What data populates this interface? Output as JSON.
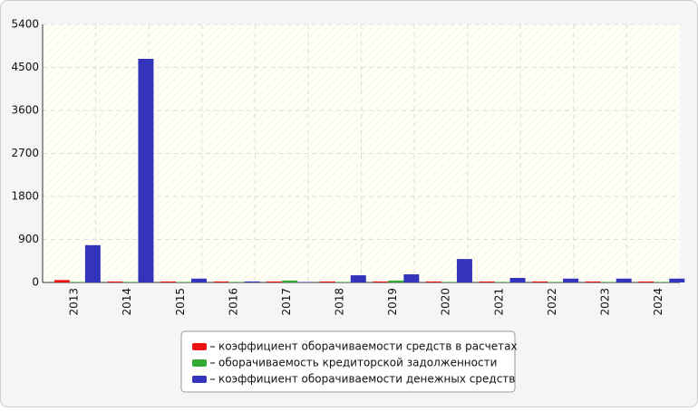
{
  "chart_data": {
    "type": "bar",
    "categories": [
      "2013",
      "2014",
      "2015",
      "2016",
      "2017",
      "2018",
      "2019",
      "2020",
      "2021",
      "2022",
      "2023",
      "2024"
    ],
    "series": [
      {
        "name": "коэффициент оборачиваемости средств в расчетах",
        "color": "#ee1111",
        "values": [
          50,
          20,
          20,
          20,
          20,
          20,
          20,
          20,
          20,
          20,
          20,
          20
        ]
      },
      {
        "name": "оборачиваемость кредиторской задолженности",
        "color": "#33aa33",
        "values": [
          10,
          10,
          10,
          10,
          40,
          10,
          40,
          10,
          10,
          10,
          10,
          10
        ]
      },
      {
        "name": "коэффициент оборачиваемости денежных средств",
        "color": "#3333bb",
        "values": [
          780,
          4680,
          80,
          20,
          10,
          150,
          170,
          490,
          95,
          80,
          80,
          80
        ]
      }
    ],
    "ylim": [
      0,
      5400
    ],
    "yticks": [
      0,
      900,
      1800,
      2700,
      3600,
      4500,
      5400
    ],
    "grid": true
  }
}
